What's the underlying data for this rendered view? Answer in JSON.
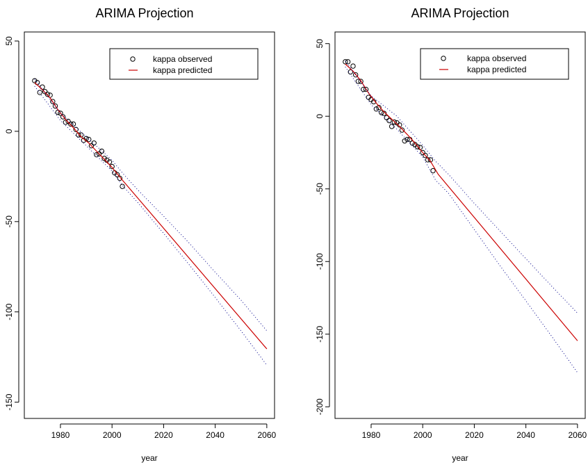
{
  "chart_data": [
    {
      "type": "line",
      "title": "ARIMA Projection",
      "xlabel": "year",
      "ylabel": "",
      "xlim": [
        1966,
        2063
      ],
      "ylim": [
        -159,
        55
      ],
      "xticks": [
        1980,
        2000,
        2020,
        2040,
        2060
      ],
      "yticks": [
        50,
        0,
        -50,
        -100,
        -150
      ],
      "legend": {
        "position": "top-right",
        "entries": [
          "kappa observed",
          "kappa predicted"
        ]
      },
      "colors": {
        "observed": "#000000",
        "predicted": "#cc0000",
        "interval": "#00008b"
      },
      "series": [
        {
          "name": "kappa observed",
          "style": "points",
          "x": [
            1970,
            1971,
            1972,
            1973,
            1974,
            1975,
            1976,
            1977,
            1978,
            1979,
            1980,
            1981,
            1982,
            1983,
            1984,
            1985,
            1986,
            1987,
            1988,
            1989,
            1990,
            1991,
            1992,
            1993,
            1994,
            1995,
            1996,
            1997,
            1998,
            1999,
            2000,
            2001,
            2002,
            2003,
            2004
          ],
          "y": [
            28,
            27,
            21.5,
            24.5,
            22,
            20.5,
            20,
            16.5,
            14,
            10.5,
            10,
            8,
            5,
            5.5,
            4,
            4,
            1,
            -2,
            -2,
            -5,
            -4,
            -4.5,
            -8,
            -6.5,
            -13,
            -12.5,
            -11,
            -15,
            -16,
            -17,
            -19.5,
            -23,
            -24,
            -26,
            -30.5
          ]
        },
        {
          "name": "kappa predicted",
          "style": "line",
          "x": [
            1970,
            1973,
            1976,
            1979,
            1982,
            1985,
            1988,
            1991,
            1994,
            1997,
            2000,
            2004,
            2060
          ],
          "y": [
            27,
            23,
            18.5,
            12,
            6.5,
            2,
            -3,
            -6.5,
            -11,
            -15.5,
            -20,
            -27,
            -120.5
          ]
        },
        {
          "style": "interval-upper",
          "x": [
            1970,
            1980,
            1990,
            2000,
            2004,
            2010,
            2020,
            2030,
            2040,
            2050,
            2060
          ],
          "y": [
            29,
            10,
            -3,
            -16,
            -23,
            -32.5,
            -47,
            -62,
            -78,
            -93.5,
            -110.5
          ]
        },
        {
          "style": "interval-lower",
          "x": [
            1970,
            1980,
            1990,
            2000,
            2004,
            2010,
            2020,
            2030,
            2040,
            2050,
            2060
          ],
          "y": [
            25,
            6,
            -8,
            -22,
            -30,
            -39.5,
            -56.5,
            -74,
            -92,
            -110.5,
            -129.5
          ]
        }
      ]
    },
    {
      "type": "line",
      "title": "ARIMA Projection",
      "xlabel": "year",
      "ylabel": "",
      "xlim": [
        1966,
        2063
      ],
      "ylim": [
        -208,
        58
      ],
      "xticks": [
        1980,
        2000,
        2020,
        2040,
        2060
      ],
      "yticks": [
        50,
        0,
        -50,
        -100,
        -150,
        -200
      ],
      "legend": {
        "position": "top-right",
        "entries": [
          "kappa observed",
          "kappa predicted"
        ]
      },
      "colors": {
        "observed": "#000000",
        "predicted": "#cc0000",
        "interval": "#00008b"
      },
      "series": [
        {
          "name": "kappa observed",
          "style": "points",
          "x": [
            1970,
            1971,
            1972,
            1973,
            1974,
            1975,
            1976,
            1977,
            1978,
            1979,
            1980,
            1981,
            1982,
            1983,
            1984,
            1985,
            1986,
            1987,
            1988,
            1989,
            1990,
            1991,
            1992,
            1993,
            1994,
            1995,
            1996,
            1997,
            1998,
            1999,
            2000,
            2001,
            2002,
            2003,
            2004
          ],
          "y": [
            37.5,
            37.5,
            30.5,
            34.5,
            28.5,
            24,
            24,
            18.5,
            18.5,
            13,
            11.5,
            10,
            5,
            6,
            2.5,
            2,
            -1,
            -3,
            -7,
            -4,
            -4.5,
            -6,
            -9.5,
            -17,
            -16,
            -16,
            -18.5,
            -19.5,
            -21,
            -21.5,
            -25,
            -27,
            -30,
            -30,
            -37.5
          ]
        },
        {
          "name": "kappa predicted",
          "style": "line",
          "x": [
            1970,
            1973,
            1976,
            1979,
            1982,
            1985,
            1988,
            1991,
            1994,
            1997,
            2000,
            2003,
            2006,
            2060
          ],
          "y": [
            36,
            31,
            24.5,
            16,
            9,
            3,
            -2,
            -7,
            -12.5,
            -18.5,
            -25,
            -31,
            -40,
            -154.5
          ]
        },
        {
          "style": "interval-upper",
          "x": [
            1970,
            1980,
            1990,
            2000,
            2005,
            2010,
            2020,
            2030,
            2040,
            2050,
            2060
          ],
          "y": [
            38,
            14,
            0,
            -20,
            -31,
            -40,
            -60,
            -79,
            -98,
            -117,
            -135.5
          ]
        },
        {
          "style": "interval-lower",
          "x": [
            1970,
            1980,
            1990,
            2000,
            2005,
            2010,
            2020,
            2030,
            2040,
            2050,
            2060
          ],
          "y": [
            34,
            8,
            -9,
            -28,
            -44,
            -53,
            -78,
            -103,
            -127,
            -151.5,
            -176.5
          ]
        }
      ]
    }
  ]
}
